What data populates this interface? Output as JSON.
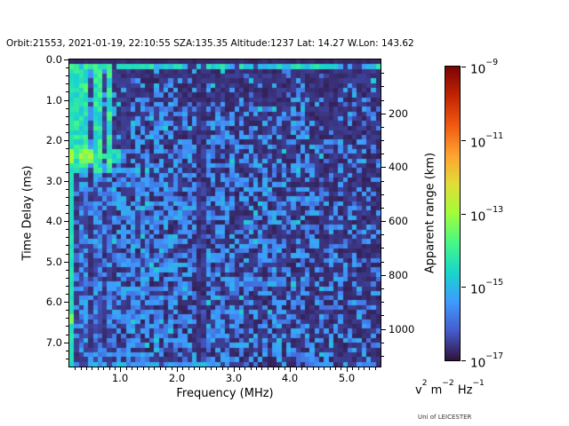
{
  "figure": {
    "title": "Orbit:21553, 2021-01-19, 22:10:55 SZA:135.35 Altitude:1237 Lat: 14.27 W.Lon: 143.62",
    "credit": "Uni of LEICESTER",
    "background": "#ffffff"
  },
  "chart_data": {
    "type": "heatmap",
    "title": "Orbit:21553, 2021-01-19, 22:10:55 SZA:135.35 Altitude:1237 Lat: 14.27 W.Lon: 143.62",
    "xlabel": "Frequency (MHz)",
    "ylabel": "Time Delay (ms)",
    "ylabel_right": "Apparent range (km)",
    "x_range": [
      0.1,
      5.6
    ],
    "y_range": [
      0,
      7.6
    ],
    "x_ticks": {
      "values": [
        1,
        2,
        3,
        4,
        5
      ],
      "labels": [
        "1.0",
        "2.0",
        "3.0",
        "4.0",
        "5.0"
      ],
      "minor_step": 0.1
    },
    "y_ticks": {
      "values": [
        0,
        1,
        2,
        3,
        4,
        5,
        6,
        7
      ],
      "labels": [
        "0.0",
        "1.0",
        "2.0",
        "3.0",
        "4.0",
        "5.0",
        "6.0",
        "7.0"
      ],
      "minor_step": 0.2
    },
    "right_axis": {
      "km_per_ms": 150,
      "tick_values": [
        200,
        400,
        600,
        800,
        1000
      ],
      "tick_labels": [
        "200",
        "400",
        "600",
        "800",
        "1000"
      ],
      "minor_step_km": 50
    },
    "colorbar": {
      "scale": "log",
      "min": 1e-17,
      "max": 1e-09,
      "ticks": [
        {
          "base": "10",
          "exp": "−9"
        },
        {
          "base": "10",
          "exp": "−11"
        },
        {
          "base": "10",
          "exp": "−13"
        },
        {
          "base": "10",
          "exp": "−15"
        },
        {
          "base": "10",
          "exp": "−17"
        }
      ],
      "unit_parts": [
        [
          "v",
          "2"
        ],
        [
          "m",
          "−2"
        ],
        [
          "Hz",
          "−1"
        ]
      ],
      "colormap": "turbo",
      "stops": [
        "#30123b",
        "#455bcd",
        "#3e9bfe",
        "#18d6cb",
        "#46f884",
        "#a2fc3c",
        "#e1dd37",
        "#fea130",
        "#ef5a11",
        "#c22402",
        "#7a0403"
      ]
    },
    "grid": {
      "cols": 66,
      "rows": 65,
      "seed": 20210119
    },
    "features": {
      "description": "Radar-sounder ionogram: noisy blue echo field on dark purple background",
      "top_dark_band_ms": 0.12,
      "surface_stripe_ms": [
        0.12,
        0.27
      ],
      "sparse_zone_ms": [
        0.27,
        1.2
      ],
      "plasma_lines_max_mhz": 0.88,
      "plasma_lines_bright_until_ms": 2.75,
      "left_edge_line_mhz": 0.15,
      "bright_patch": {
        "t_ms": [
          2.2,
          2.6
        ],
        "f_mhz": [
          0.1,
          1.0
        ]
      },
      "dark_zone": {
        "f_mhz": [
          0.88,
          1.18
        ],
        "t_ms": [
          0.27,
          2.2
        ]
      },
      "dark_band_mhz": [
        2.38,
        2.52
      ],
      "bottom_edge_row_ms": 7.45,
      "echo_density_left": 0.7,
      "echo_density_right": 0.32
    }
  }
}
